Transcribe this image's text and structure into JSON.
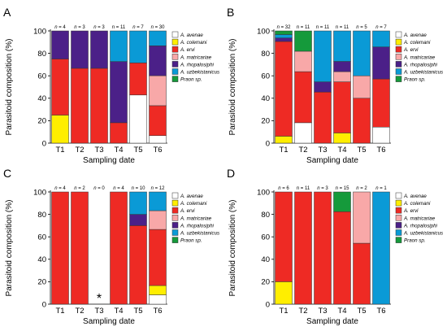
{
  "chart_data": [
    {
      "type": "bar",
      "stacked": true,
      "panel": "A",
      "categories": [
        "T1",
        "T2",
        "T3",
        "T4",
        "T5",
        "T6"
      ],
      "n_labels": [
        "4",
        "3",
        "3",
        "11",
        "7",
        "30"
      ],
      "n_prefix": "n",
      "xlabel": "Sampling date",
      "ylabel": "Parasitoid composition (%)",
      "ylim": [
        0,
        100
      ],
      "yticks": [
        0,
        20,
        40,
        60,
        80,
        100
      ],
      "legend_position": "right",
      "series": [
        {
          "name": "A. avenae",
          "color": "#ffffff",
          "values": [
            0,
            0,
            0,
            0,
            42.9,
            6.7
          ]
        },
        {
          "name": "A. colemani",
          "color": "#ffee00",
          "values": [
            25,
            0,
            0,
            0,
            0,
            0
          ]
        },
        {
          "name": "A. ervi",
          "color": "#ee2a24",
          "values": [
            50,
            66.7,
            66.7,
            18.2,
            28.6,
            26.7
          ]
        },
        {
          "name": "A. matricariae",
          "color": "#f8a8a8",
          "values": [
            0,
            0,
            0,
            0,
            0,
            26.7
          ]
        },
        {
          "name": "A. rhopalosiphi",
          "color": "#4b2088",
          "values": [
            25,
            33.3,
            33.3,
            54.5,
            0,
            26.6
          ]
        },
        {
          "name": "A. uzbekistanicus",
          "color": "#0a9ad6",
          "values": [
            0,
            0,
            0,
            27.3,
            28.5,
            13.3
          ]
        },
        {
          "name": "Praon sp.",
          "color": "#159a3b",
          "values": [
            0,
            0,
            0,
            0,
            0,
            0
          ]
        }
      ]
    },
    {
      "type": "bar",
      "stacked": true,
      "panel": "B",
      "categories": [
        "T1",
        "T2",
        "T3",
        "T4",
        "T5",
        "T6"
      ],
      "n_labels": [
        "32",
        "11",
        "11",
        "11",
        "5",
        "7"
      ],
      "n_prefix": "n",
      "xlabel": "Sampling date",
      "ylabel": "Parasitoid composition (%)",
      "ylim": [
        0,
        100
      ],
      "yticks": [
        0,
        20,
        40,
        60,
        80,
        100
      ],
      "legend_position": "right",
      "series": [
        {
          "name": "A. avenae",
          "color": "#ffffff",
          "values": [
            0,
            18.2,
            0,
            0,
            0,
            14.3
          ]
        },
        {
          "name": "A. colemani",
          "color": "#ffee00",
          "values": [
            6.2,
            0,
            0,
            9.1,
            0,
            0
          ]
        },
        {
          "name": "A. ervi",
          "color": "#ee2a24",
          "values": [
            84.4,
            45.5,
            45.5,
            45.5,
            40,
            42.9
          ]
        },
        {
          "name": "A. matricariae",
          "color": "#f8a8a8",
          "values": [
            0,
            18.2,
            0,
            9.1,
            20,
            0
          ]
        },
        {
          "name": "A. rhopalosiphi",
          "color": "#4b2088",
          "values": [
            3.1,
            0,
            9.1,
            9.1,
            0,
            28.5
          ]
        },
        {
          "name": "A. uzbekistanicus",
          "color": "#0a9ad6",
          "values": [
            3.1,
            0,
            45.4,
            27.2,
            40,
            14.3
          ]
        },
        {
          "name": "Praon sp.",
          "color": "#159a3b",
          "values": [
            3.2,
            18.1,
            0,
            0,
            0,
            0
          ]
        }
      ]
    },
    {
      "type": "bar",
      "stacked": true,
      "panel": "C",
      "categories": [
        "T1",
        "T2",
        "T3",
        "T4",
        "T5",
        "T6"
      ],
      "n_labels": [
        "4",
        "2",
        "0",
        "4",
        "10",
        "12"
      ],
      "n_prefix": "n",
      "xlabel": "Sampling date",
      "ylabel": "Parasitoid composition (%)",
      "ylim": [
        0,
        100
      ],
      "yticks": [
        0,
        20,
        40,
        60,
        80,
        100
      ],
      "legend_position": "right",
      "annotation": {
        "category": "T3",
        "text": "*"
      },
      "series": [
        {
          "name": "A. avenae",
          "color": "#ffffff",
          "values": [
            0,
            0,
            0,
            0,
            0,
            8.3
          ]
        },
        {
          "name": "A. colemani",
          "color": "#ffee00",
          "values": [
            0,
            0,
            0,
            0,
            0,
            8.3
          ]
        },
        {
          "name": "A. ervi",
          "color": "#ee2a24",
          "values": [
            100,
            100,
            0,
            100,
            70,
            50
          ]
        },
        {
          "name": "A. matricariae",
          "color": "#f8a8a8",
          "values": [
            0,
            0,
            0,
            0,
            0,
            16.7
          ]
        },
        {
          "name": "A. rhopalosiphi",
          "color": "#4b2088",
          "values": [
            0,
            0,
            0,
            0,
            10,
            0
          ]
        },
        {
          "name": "A. uzbekistanicus",
          "color": "#0a9ad6",
          "values": [
            0,
            0,
            0,
            0,
            20,
            16.7
          ]
        },
        {
          "name": "Praon sp.",
          "color": "#159a3b",
          "values": [
            0,
            0,
            0,
            0,
            0,
            0
          ]
        }
      ]
    },
    {
      "type": "bar",
      "stacked": true,
      "panel": "D",
      "categories": [
        "T1",
        "T2",
        "T3",
        "T4",
        "T5",
        "T6"
      ],
      "n_labels": [
        "6",
        "11",
        "3",
        "15",
        "2",
        "1"
      ],
      "n_prefix": "n",
      "xlabel": "Sampling date",
      "ylabel": "Parasitoid composition (%)",
      "ylim": [
        0,
        100
      ],
      "yticks": [
        0,
        20,
        40,
        60,
        80,
        100
      ],
      "legend_position": "right",
      "series": [
        {
          "name": "A. avenae",
          "color": "#ffffff",
          "values": [
            0,
            0,
            0,
            0,
            0,
            0
          ]
        },
        {
          "name": "A. colemani",
          "color": "#ffee00",
          "values": [
            20,
            0,
            0,
            0,
            0,
            0
          ]
        },
        {
          "name": "A. ervi",
          "color": "#ee2a24",
          "values": [
            80,
            100,
            100,
            82.4,
            54.3,
            0
          ]
        },
        {
          "name": "A. matricariae",
          "color": "#f8a8a8",
          "values": [
            0,
            0,
            0,
            0,
            45.7,
            0
          ]
        },
        {
          "name": "A. rhopalosiphi",
          "color": "#4b2088",
          "values": [
            0,
            0,
            0,
            0,
            0,
            0
          ]
        },
        {
          "name": "A. uzbekistanicus",
          "color": "#0a9ad6",
          "values": [
            0,
            0,
            0,
            0,
            0,
            100
          ]
        },
        {
          "name": "Praon sp.",
          "color": "#159a3b",
          "values": [
            0,
            0,
            0,
            17.6,
            0,
            0
          ]
        }
      ]
    }
  ]
}
